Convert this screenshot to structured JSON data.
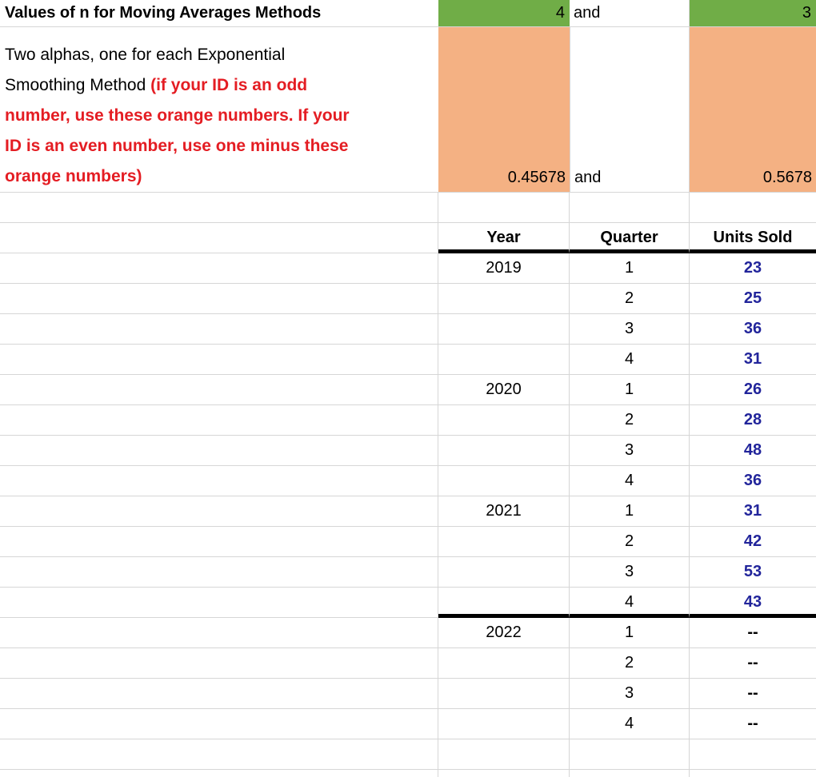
{
  "colors": {
    "green": "#70AD47",
    "orange": "#F4B183",
    "red": "#E41D23",
    "navy": "#22259B",
    "grid": "#D6D6D6",
    "divider": "#000000"
  },
  "n_row": {
    "label": "Values of n for Moving Averages Methods",
    "value_1": "4",
    "connector": "and",
    "value_2": "3"
  },
  "alpha_block": {
    "lines": [
      [
        {
          "text": "Two alphas, one for each Exponential",
          "style": "black"
        }
      ],
      [
        {
          "text": "Smoothing Method ",
          "style": "black"
        },
        {
          "text": "(if your ID is an odd",
          "style": "red"
        }
      ],
      [
        {
          "text": "number, use these orange numbers. If your",
          "style": "red"
        }
      ],
      [
        {
          "text": "ID is an even number, use one minus these",
          "style": "red"
        }
      ],
      [
        {
          "text": "orange numbers)",
          "style": "red"
        }
      ]
    ],
    "value_1": "0.45678",
    "connector": "and",
    "value_2": "0.5678"
  },
  "table": {
    "headers": [
      "Year",
      "Quarter",
      "Units Sold"
    ],
    "rows": [
      {
        "year": "2019",
        "quarter": "1",
        "units": "23",
        "units_style": "navy"
      },
      {
        "year": "",
        "quarter": "2",
        "units": "25",
        "units_style": "navy"
      },
      {
        "year": "",
        "quarter": "3",
        "units": "36",
        "units_style": "navy"
      },
      {
        "year": "",
        "quarter": "4",
        "units": "31",
        "units_style": "navy"
      },
      {
        "year": "2020",
        "quarter": "1",
        "units": "26",
        "units_style": "navy"
      },
      {
        "year": "",
        "quarter": "2",
        "units": "28",
        "units_style": "navy"
      },
      {
        "year": "",
        "quarter": "3",
        "units": "48",
        "units_style": "navy"
      },
      {
        "year": "",
        "quarter": "4",
        "units": "36",
        "units_style": "navy"
      },
      {
        "year": "2021",
        "quarter": "1",
        "units": "31",
        "units_style": "navy"
      },
      {
        "year": "",
        "quarter": "2",
        "units": "42",
        "units_style": "navy"
      },
      {
        "year": "",
        "quarter": "3",
        "units": "53",
        "units_style": "navy"
      },
      {
        "year": "",
        "quarter": "4",
        "units": "43",
        "units_style": "navy",
        "divider_after": true
      },
      {
        "year": "2022",
        "quarter": "1",
        "units": "--",
        "units_style": "dash"
      },
      {
        "year": "",
        "quarter": "2",
        "units": "--",
        "units_style": "dash"
      },
      {
        "year": "",
        "quarter": "3",
        "units": "--",
        "units_style": "dash"
      },
      {
        "year": "",
        "quarter": "4",
        "units": "--",
        "units_style": "dash"
      },
      {
        "year": "",
        "quarter": "",
        "units": "",
        "units_style": "none"
      },
      {
        "year": "",
        "quarter": "",
        "units": "",
        "units_style": "none"
      }
    ]
  }
}
